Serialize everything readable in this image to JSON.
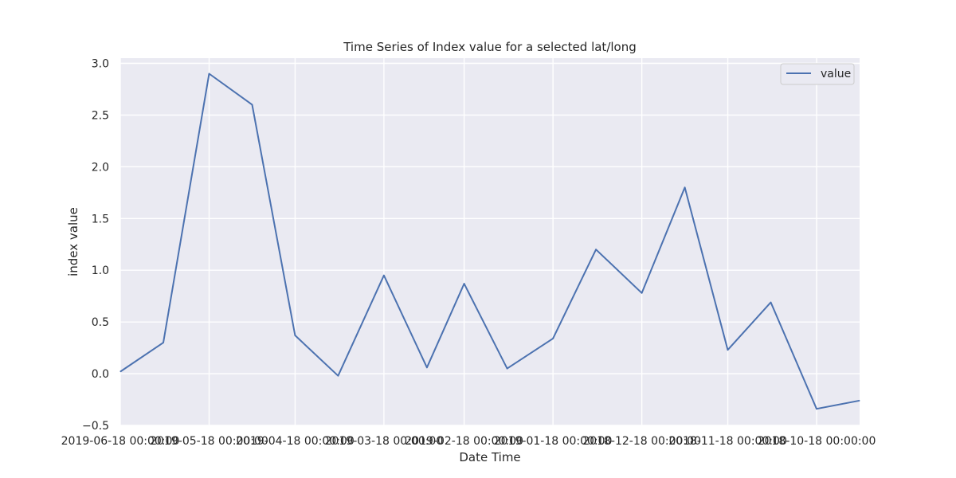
{
  "chart_data": {
    "type": "line",
    "title": "Time Series of Index value for a selected lat/long",
    "xlabel": "Date Time",
    "ylabel": "index value",
    "x_tick_labels": [
      "2019-06-18 00:00:00",
      "2019-05-18 00:00:00",
      "2019-04-18 00:00:00",
      "2019-03-18 00:00:00",
      "2019-02-18 00:00:00",
      "2019-01-18 00:00:00",
      "2018-12-18 00:00:00",
      "2018-11-18 00:00:00",
      "2018-10-18 00:00:00"
    ],
    "y_ticks": [
      -0.5,
      0.0,
      0.5,
      1.0,
      1.5,
      2.0,
      2.5,
      3.0
    ],
    "y_tick_labels": [
      "−0.5",
      "0.0",
      "0.5",
      "1.0",
      "1.5",
      "2.0",
      "2.5",
      "3.0"
    ],
    "ylim": [
      -0.5,
      3.05
    ],
    "grid": true,
    "legend_position": "top-right",
    "series": [
      {
        "name": "value",
        "color": "#4c72b0",
        "x": [
          "2019-06-18",
          "2019-06-03",
          "2019-05-18",
          "2019-05-03",
          "2019-04-18",
          "2019-04-03",
          "2019-03-18",
          "2019-03-03",
          "2019-02-18",
          "2019-02-03",
          "2019-01-18",
          "2019-01-03",
          "2018-12-18",
          "2018-12-03",
          "2018-11-18",
          "2018-11-03",
          "2018-10-18",
          "2018-10-03"
        ],
        "values": [
          0.02,
          0.3,
          2.9,
          2.6,
          0.37,
          -0.02,
          0.95,
          0.06,
          0.87,
          0.05,
          0.34,
          1.2,
          0.78,
          1.8,
          0.23,
          0.69,
          -0.34,
          -0.26
        ]
      }
    ]
  }
}
